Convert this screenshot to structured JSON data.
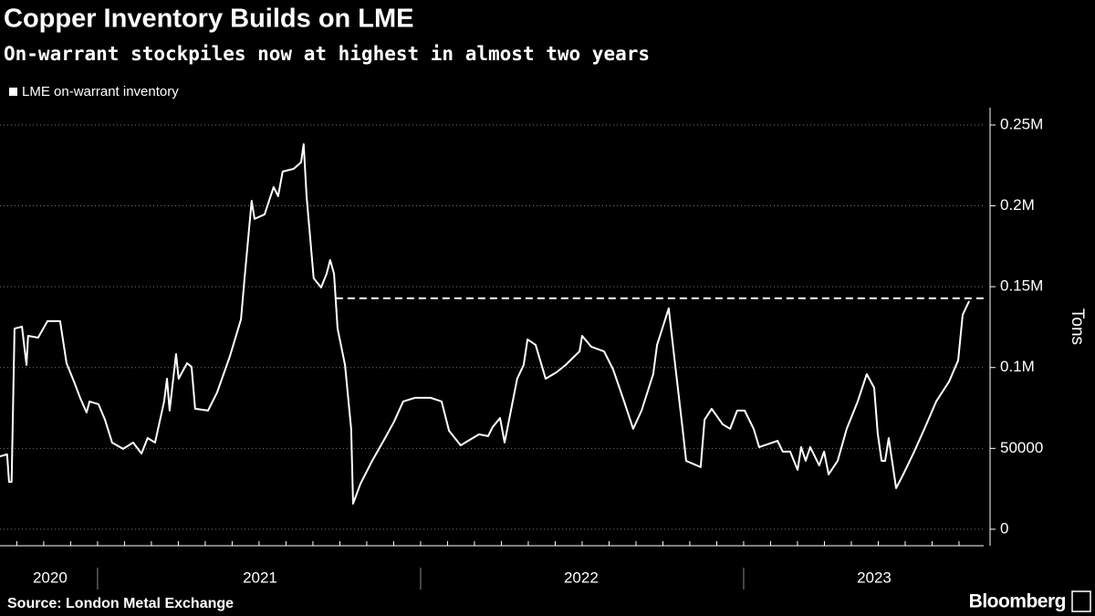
{
  "chart_data": {
    "type": "line",
    "title": "Copper Inventory Builds on LME",
    "subtitle": "On-warrant stockpiles now at highest in almost two years",
    "y_axis_label": "Tons",
    "source": "Source: London Metal Exchange",
    "brand": "Bloomberg",
    "legend": "top-left",
    "xlim": [
      2020.698,
      2023.743
    ],
    "xticks": [
      {
        "value": 2020.853,
        "label": "2020"
      },
      {
        "value": 2021.503,
        "label": "2021"
      },
      {
        "value": 2022.497,
        "label": "2022"
      },
      {
        "value": 2023.404,
        "label": "2023"
      }
    ],
    "ylim": [
      -10200,
      260700
    ],
    "yticks": [
      0,
      50000,
      {
        "value": 100000,
        "label": "0.1M"
      },
      {
        "value": 150000,
        "label": "0.15M"
      },
      {
        "value": 200000,
        "label": "0.2M"
      },
      {
        "value": 250000,
        "label": "0.25M"
      }
    ],
    "grid": true,
    "reference_line": {
      "value": 142800,
      "x_start": 2021.737,
      "color": "#ffffff"
    },
    "x": [
      2020.698,
      2020.72,
      2020.726,
      2020.734,
      2020.743,
      2020.766,
      2020.78,
      2020.785,
      2020.816,
      2020.845,
      2020.884,
      2020.904,
      2020.929,
      2020.946,
      2020.966,
      2020.975,
      2021.003,
      2021.023,
      2021.045,
      2021.079,
      2021.11,
      2021.136,
      2021.155,
      2021.178,
      2021.206,
      2021.215,
      2021.223,
      2021.243,
      2021.251,
      2021.277,
      2021.291,
      2021.302,
      2021.342,
      2021.37,
      2021.41,
      2021.444,
      2021.455,
      2021.477,
      2021.486,
      2021.517,
      2021.545,
      2021.559,
      2021.573,
      2021.607,
      2021.63,
      2021.638,
      2021.647,
      2021.669,
      2021.692,
      2021.709,
      2021.72,
      2021.732,
      2021.743,
      2021.766,
      2021.785,
      2021.791,
      2021.814,
      2021.85,
      2021.89,
      2021.918,
      2021.946,
      2021.983,
      2022.031,
      2022.065,
      2022.088,
      2022.124,
      2022.181,
      2022.209,
      2022.223,
      2022.246,
      2022.26,
      2022.274,
      2022.299,
      2022.319,
      2022.331,
      2022.356,
      2022.387,
      2022.421,
      2022.449,
      2022.492,
      2022.5,
      2022.528,
      2022.568,
      2022.596,
      2022.63,
      2022.658,
      2022.684,
      2022.72,
      2022.732,
      2022.768,
      2022.788,
      2022.811,
      2022.822,
      2022.867,
      2022.879,
      2022.901,
      2022.935,
      2022.958,
      2022.98,
      2023.003,
      2023.031,
      2023.048,
      2023.105,
      2023.121,
      2023.144,
      2023.167,
      2023.178,
      2023.192,
      2023.206,
      2023.234,
      2023.249,
      2023.263,
      2023.291,
      2023.319,
      2023.353,
      2023.381,
      2023.404,
      2023.415,
      2023.427,
      2023.438,
      2023.449,
      2023.472,
      2023.494,
      2023.528,
      2023.562,
      2023.596,
      2023.636,
      2023.664,
      2023.678,
      2023.698
    ],
    "series": [
      {
        "name": "LME on-warrant inventory",
        "color": "#ffffff",
        "values": [
          45100,
          46300,
          29300,
          29300,
          124100,
          125300,
          101600,
          119600,
          118500,
          128700,
          128700,
          102700,
          90300,
          81300,
          72200,
          79000,
          77300,
          67700,
          53600,
          49700,
          53600,
          46800,
          56400,
          53600,
          79000,
          93100,
          73400,
          108300,
          93100,
          102700,
          100400,
          74500,
          73400,
          84600,
          107200,
          129800,
          155200,
          203100,
          191900,
          194700,
          211600,
          206000,
          221200,
          222900,
          226900,
          238100,
          206000,
          155200,
          149500,
          158000,
          166500,
          158000,
          124100,
          101600,
          62100,
          15800,
          28200,
          42300,
          56400,
          66600,
          79000,
          81300,
          81300,
          79000,
          60900,
          51900,
          58700,
          57600,
          63200,
          68800,
          53600,
          67700,
          93100,
          101600,
          117400,
          114000,
          93100,
          97100,
          101600,
          110000,
          119600,
          112900,
          110000,
          98800,
          79000,
          62100,
          73400,
          95900,
          114000,
          136600,
          101600,
          62100,
          42300,
          38400,
          67700,
          74500,
          64900,
          62100,
          73400,
          73400,
          62100,
          50800,
          54700,
          48000,
          48000,
          36700,
          50800,
          42300,
          50800,
          39500,
          48000,
          33900,
          42300,
          62100,
          79000,
          95900,
          87500,
          59300,
          42300,
          42300,
          56400,
          25400,
          33900,
          48000,
          63200,
          79000,
          91400,
          104400,
          132600,
          141100
        ]
      }
    ]
  }
}
